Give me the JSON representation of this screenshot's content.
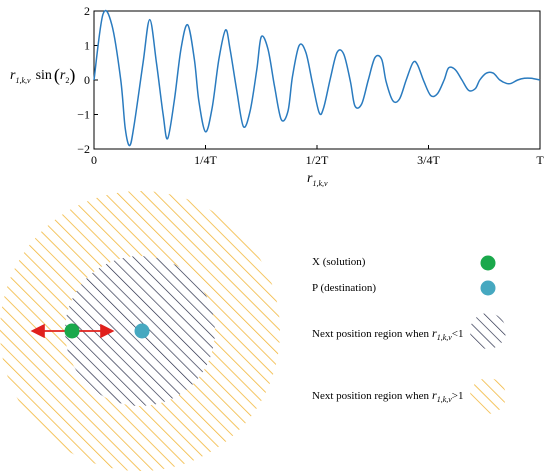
{
  "chart_data": {
    "type": "line",
    "ylabel": "r1,k,v sin(r2)",
    "xlabel": "r1,k,v",
    "xticks": [
      "0",
      "1/4T",
      "1/2T",
      "3/4T",
      "T"
    ],
    "yticks": [
      "2",
      "1",
      "0",
      "−1",
      "−2"
    ],
    "ylim": [
      -2,
      2
    ],
    "xlim": [
      0,
      1
    ],
    "grid": false,
    "series": [
      {
        "x": [
          0.0,
          0.02,
          0.04,
          0.06,
          0.07,
          0.08,
          0.09,
          0.11,
          0.125,
          0.14,
          0.155,
          0.165,
          0.18,
          0.195,
          0.21,
          0.225,
          0.235,
          0.25,
          0.265,
          0.28,
          0.295,
          0.305,
          0.32,
          0.335,
          0.35,
          0.365,
          0.375,
          0.39,
          0.405,
          0.42,
          0.435,
          0.445,
          0.46,
          0.475,
          0.49,
          0.505,
          0.515,
          0.53,
          0.545,
          0.56,
          0.575,
          0.585,
          0.6,
          0.615,
          0.63,
          0.645,
          0.655,
          0.67,
          0.685,
          0.7,
          0.715,
          0.725,
          0.74,
          0.755,
          0.77,
          0.785,
          0.795,
          0.81,
          0.825,
          0.84,
          0.855,
          0.865,
          0.88,
          0.895,
          0.91,
          0.925,
          0.935,
          0.95,
          0.965,
          0.98,
          1.0
        ],
        "y": [
          0.0,
          1.9,
          1.6,
          0.0,
          -1.4,
          -1.9,
          -1.3,
          0.5,
          1.75,
          0.5,
          -1.0,
          -1.7,
          -0.6,
          0.9,
          1.6,
          0.6,
          -0.6,
          -1.5,
          -0.8,
          0.6,
          1.45,
          0.9,
          -0.3,
          -1.35,
          -0.9,
          0.3,
          1.25,
          0.9,
          -0.2,
          -1.15,
          -0.9,
          0.1,
          1.0,
          0.8,
          -0.1,
          -0.95,
          -0.8,
          0.05,
          0.8,
          0.75,
          -0.05,
          -0.75,
          -0.7,
          0.0,
          0.65,
          0.6,
          -0.05,
          -0.6,
          -0.55,
          0.0,
          0.5,
          0.45,
          -0.05,
          -0.45,
          -0.4,
          0.0,
          0.35,
          0.3,
          0.0,
          -0.3,
          -0.25,
          0.0,
          0.2,
          0.2,
          0.0,
          -0.1,
          -0.1,
          0.0,
          0.05,
          0.05,
          0.0
        ]
      }
    ]
  },
  "diagram": {
    "legend": [
      {
        "text": "X (solution)",
        "color": "#1aa84b"
      },
      {
        "text": "P (destination)",
        "color": "#46a8c0"
      },
      {
        "text": "Next position region when",
        "cond": "<1",
        "hatch_color": "#1e2340"
      },
      {
        "text": "Next position region when",
        "cond": ">1",
        "hatch_color": "#f2b73a"
      }
    ],
    "sub_r": "r",
    "sub_idx": "1,k,v",
    "arrow_color": "#e0201c"
  }
}
